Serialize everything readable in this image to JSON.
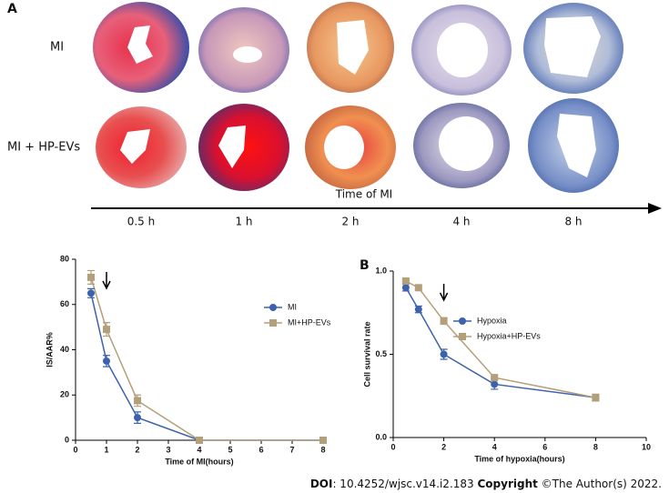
{
  "figure": {
    "panel_a": "A",
    "rows": [
      "MI",
      "MI + HP-EVs"
    ],
    "time_axis_label": "Time of MI",
    "times": [
      "0.5 h",
      "1 h",
      "2 h",
      "4 h",
      "8 h"
    ]
  },
  "chart_data": [
    {
      "type": "line",
      "ylabel": "IS/AAR%",
      "xlabel": "Time of MI(hours)",
      "x": [
        0.5,
        1,
        2,
        4,
        8
      ],
      "xlim": [
        0,
        8
      ],
      "xticks": [
        0,
        1,
        2,
        3,
        4,
        5,
        6,
        7,
        8
      ],
      "ylim": [
        0,
        80
      ],
      "yticks": [
        0,
        20,
        40,
        60,
        80
      ],
      "arrow_at": 1,
      "series": [
        {
          "name": "MI",
          "color": "#3d62ad",
          "marker": "circle",
          "values": [
            65,
            35,
            10,
            0,
            0
          ],
          "errors": [
            2,
            2.5,
            2.5,
            0,
            0
          ]
        },
        {
          "name": "MI+HP-EVs",
          "color": "#b3a07a",
          "marker": "square",
          "values": [
            72,
            49,
            17.5,
            0,
            0
          ],
          "errors": [
            3,
            3,
            2.5,
            0,
            0
          ]
        }
      ]
    },
    {
      "type": "line",
      "panel": "B",
      "ylabel": "Cell survival rate",
      "xlabel": "Time of hypoxia(hours)",
      "x": [
        0.5,
        1,
        2,
        4,
        8
      ],
      "xlim": [
        0,
        10
      ],
      "xticks": [
        0,
        2,
        4,
        6,
        8,
        10
      ],
      "ylim": [
        0,
        1
      ],
      "yticks": [
        {
          "value": 0,
          "label": "0.0"
        },
        {
          "value": 0.5,
          "label": "0.5"
        },
        {
          "value": 1,
          "label": "1.0"
        }
      ],
      "arrow_at": 2,
      "series": [
        {
          "name": "Hypoxia",
          "color": "#3d62ad",
          "marker": "circle",
          "values": [
            0.9,
            0.77,
            0.5,
            0.32,
            0.24
          ],
          "errors": [
            0.02,
            0.02,
            0.03,
            0.03,
            0.02
          ]
        },
        {
          "name": "Hypoxia+HP-EVs",
          "color": "#b3a07a",
          "marker": "square",
          "values": [
            0.94,
            0.9,
            0.7,
            0.36,
            0.24
          ],
          "errors": [
            0.01,
            0.01,
            0.02,
            0.01,
            0.02
          ]
        }
      ]
    }
  ],
  "footer": {
    "doi_label": "DOI",
    "doi": ": 10.4252/wjsc.v14.i2.183 ",
    "copyright_label": "Copyright",
    "copyright": " ©The Author(s) 2022."
  }
}
